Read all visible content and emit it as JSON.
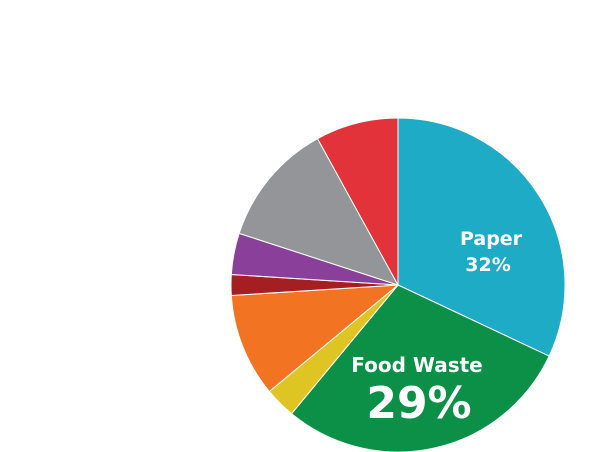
{
  "chart_data": {
    "type": "pie",
    "title": "",
    "start_angle_deg": 0,
    "direction": "clockwise",
    "slices": [
      {
        "label": "Paper",
        "value": 32,
        "display_value": "32%",
        "color": "#1eabc6",
        "labeled": true
      },
      {
        "label": "Food Waste",
        "value": 29,
        "display_value": "29%",
        "color": "#0c9048",
        "labeled": true
      },
      {
        "label": "",
        "value": 3,
        "display_value": "",
        "color": "#dfc523",
        "labeled": false
      },
      {
        "label": "",
        "value": 10,
        "display_value": "",
        "color": "#f27422",
        "labeled": false
      },
      {
        "label": "",
        "value": 2,
        "display_value": "",
        "color": "#a41e22",
        "labeled": false
      },
      {
        "label": "",
        "value": 4,
        "display_value": "",
        "color": "#8a3f9b",
        "labeled": false
      },
      {
        "label": "",
        "value": 12,
        "display_value": "",
        "color": "#939598",
        "labeled": false
      },
      {
        "label": "",
        "value": 8,
        "display_value": "",
        "color": "#e2333b",
        "labeled": false
      }
    ]
  }
}
